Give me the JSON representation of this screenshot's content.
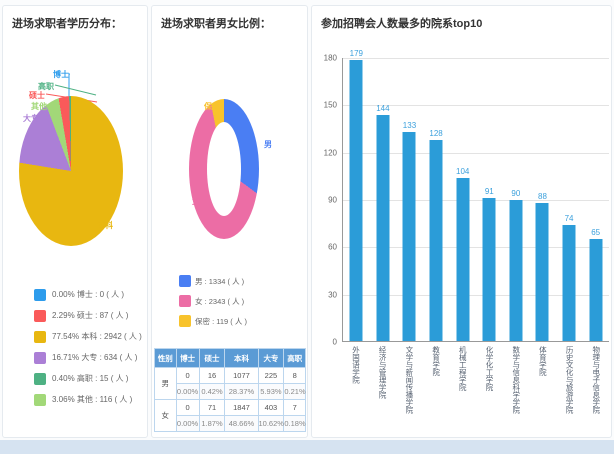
{
  "page": {
    "footer_band_color": "#D6E3F1"
  },
  "panels": {
    "education": {
      "title": "进场求职者学历分布：",
      "unit": "人",
      "slices": [
        {
          "label": "博士",
          "value": 0,
          "percent": "0.00%",
          "color": "#2D9CEC"
        },
        {
          "label": "硕士",
          "value": 87,
          "percent": "2.29%",
          "color": "#FA5A5A"
        },
        {
          "label": "本科",
          "value": 2942,
          "percent": "77.54%",
          "color": "#E8B710"
        },
        {
          "label": "大专",
          "value": 634,
          "percent": "16.71%",
          "color": "#AB7FD6"
        },
        {
          "label": "高职",
          "value": 15,
          "percent": "0.40%",
          "color": "#4EB183"
        },
        {
          "label": "其他",
          "value": 116,
          "percent": "3.06%",
          "color": "#A2D878"
        }
      ],
      "draw_order": [
        2,
        3,
        5,
        1,
        4,
        0
      ]
    },
    "gender": {
      "title": "进场求职者男女比例：",
      "unit": "人",
      "slices": [
        {
          "label": "男",
          "value": 1334,
          "color": "#4A7EF3"
        },
        {
          "label": "女",
          "value": 2343,
          "color": "#EC6DA5"
        },
        {
          "label": "保密",
          "value": 119,
          "color": "#F8C32C"
        }
      ],
      "table": {
        "columns": [
          "性别",
          "博士",
          "硕士",
          "本科",
          "大专",
          "高职"
        ],
        "groups": [
          {
            "label": "男",
            "counts": [
              "0",
              "16",
              "1077",
              "225",
              "8"
            ],
            "percents": [
              "0.00%",
              "0.42%",
              "28.37%",
              "5.93%",
              "0.21%"
            ]
          },
          {
            "label": "女",
            "counts": [
              "0",
              "71",
              "1847",
              "403",
              "7"
            ],
            "percents": [
              "0.00%",
              "1.87%",
              "48.66%",
              "10.62%",
              "0.18%"
            ]
          }
        ]
      }
    },
    "faculty": {
      "title": "参加招聘会人数最多的院系top10",
      "categories": [
        "外国语学院",
        "经济与管理学院",
        "文学与新闻传播学院",
        "教育学院",
        "机械工程学院",
        "化学化工学院",
        "数学与信息科学学院",
        "体育学院",
        "历史文化与旅游学院",
        "物理与电子信息学院"
      ],
      "values": [
        179,
        144,
        133,
        128,
        104,
        91,
        90,
        88,
        74,
        65
      ],
      "ylim": [
        0,
        180
      ],
      "yticks": [
        180,
        150,
        120,
        90,
        60,
        30,
        0
      ],
      "bar_color": "#2B9CD8",
      "value_label_color": "#3BA0DC"
    }
  },
  "chart_data": [
    {
      "type": "pie",
      "title": "进场求职者学历分布",
      "labels": [
        "博士",
        "硕士",
        "本科",
        "大专",
        "高职",
        "其他"
      ],
      "values": [
        0,
        87,
        2942,
        634,
        15,
        116
      ],
      "percent_labels": [
        "0.00%",
        "2.29%",
        "77.54%",
        "16.71%",
        "0.40%",
        "3.06%"
      ],
      "colors": [
        "#2D9CEC",
        "#FA5A5A",
        "#E8B710",
        "#AB7FD6",
        "#4EB183",
        "#A2D878"
      ],
      "unit": "人",
      "legend_position": "bottom-left"
    },
    {
      "type": "pie",
      "subtype": "donut",
      "title": "进场求职者男女比例",
      "labels": [
        "男",
        "女",
        "保密"
      ],
      "values": [
        1334,
        2343,
        119
      ],
      "colors": [
        "#4A7EF3",
        "#EC6DA5",
        "#F8C32C"
      ],
      "unit": "人",
      "legend_position": "bottom-left"
    },
    {
      "type": "bar",
      "title": "参加招聘会人数最多的院系top10",
      "categories": [
        "外国语学院",
        "经济与管理学院",
        "文学与新闻传播学院",
        "教育学院",
        "机械工程学院",
        "化学化工学院",
        "数学与信息科学学院",
        "体育学院",
        "历史文化与旅游学院",
        "物理与电子信息学院"
      ],
      "values": [
        179,
        144,
        133,
        128,
        104,
        91,
        90,
        88,
        74,
        65
      ],
      "xlabel": "",
      "ylabel": "",
      "ylim": [
        0,
        180
      ],
      "yticks": [
        0,
        30,
        60,
        90,
        120,
        150,
        180
      ],
      "grid": true,
      "bar_color": "#2B9CD8"
    },
    {
      "type": "table",
      "columns": [
        "性别",
        "博士",
        "硕士",
        "本科",
        "大专",
        "高职"
      ],
      "rows": [
        [
          "男",
          "0",
          "16",
          "1077",
          "225",
          "8"
        ],
        [
          "男(%)",
          "0.00%",
          "0.42%",
          "28.37%",
          "5.93%",
          "0.21%"
        ],
        [
          "女",
          "0",
          "71",
          "1847",
          "403",
          "7"
        ],
        [
          "女(%)",
          "0.00%",
          "1.87%",
          "48.66%",
          "10.62%",
          "0.18%"
        ]
      ]
    }
  ]
}
